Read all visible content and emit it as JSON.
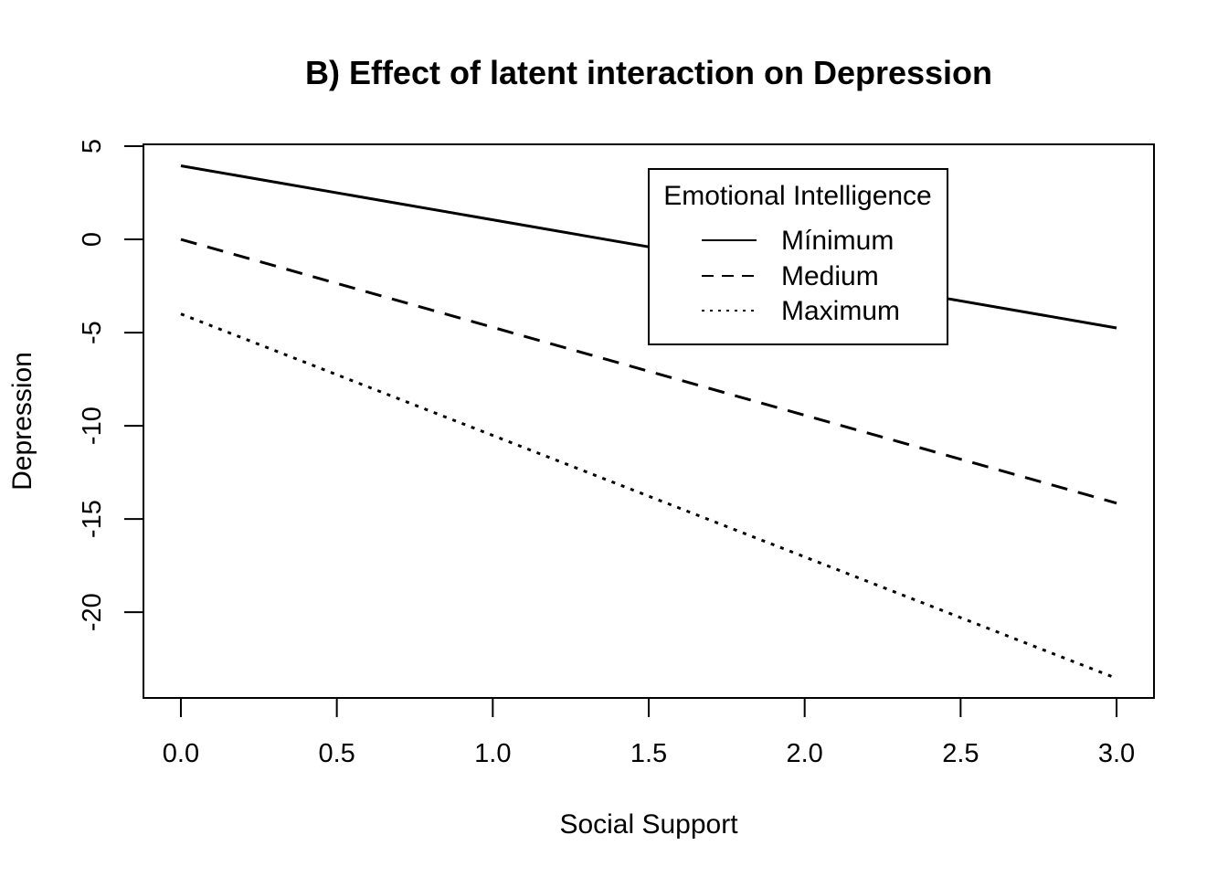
{
  "chart_data": {
    "type": "line",
    "title": "B) Effect of latent interaction on Depression",
    "xlabel": "Social Support",
    "ylabel": "Depression",
    "xlim": [
      -0.12,
      3.12
    ],
    "ylim": [
      -24.6,
      5.1
    ],
    "x_ticks": [
      0.0,
      0.5,
      1.0,
      1.5,
      2.0,
      2.5,
      3.0
    ],
    "x_tick_labels": [
      "0.0",
      "0.5",
      "1.0",
      "1.5",
      "2.0",
      "2.5",
      "3.0"
    ],
    "y_ticks": [
      5,
      0,
      -5,
      -10,
      -15,
      -20
    ],
    "y_tick_labels": [
      "5",
      "0",
      "-5",
      "-10",
      "-15",
      "-20"
    ],
    "grid": false,
    "legend": {
      "title": "Emotional Intelligence",
      "placement": "top-right"
    },
    "series": [
      {
        "name": "Mínimum",
        "style": "solid",
        "x": [
          0,
          3
        ],
        "y": [
          3.95,
          -4.75
        ]
      },
      {
        "name": "Medium",
        "style": "dashed",
        "x": [
          0,
          3
        ],
        "y": [
          0.0,
          -14.15
        ]
      },
      {
        "name": "Maximum",
        "style": "dotted",
        "x": [
          0,
          3
        ],
        "y": [
          -4.0,
          -23.55
        ]
      }
    ],
    "colors": {
      "line": "#000000",
      "background": "#ffffff"
    }
  }
}
